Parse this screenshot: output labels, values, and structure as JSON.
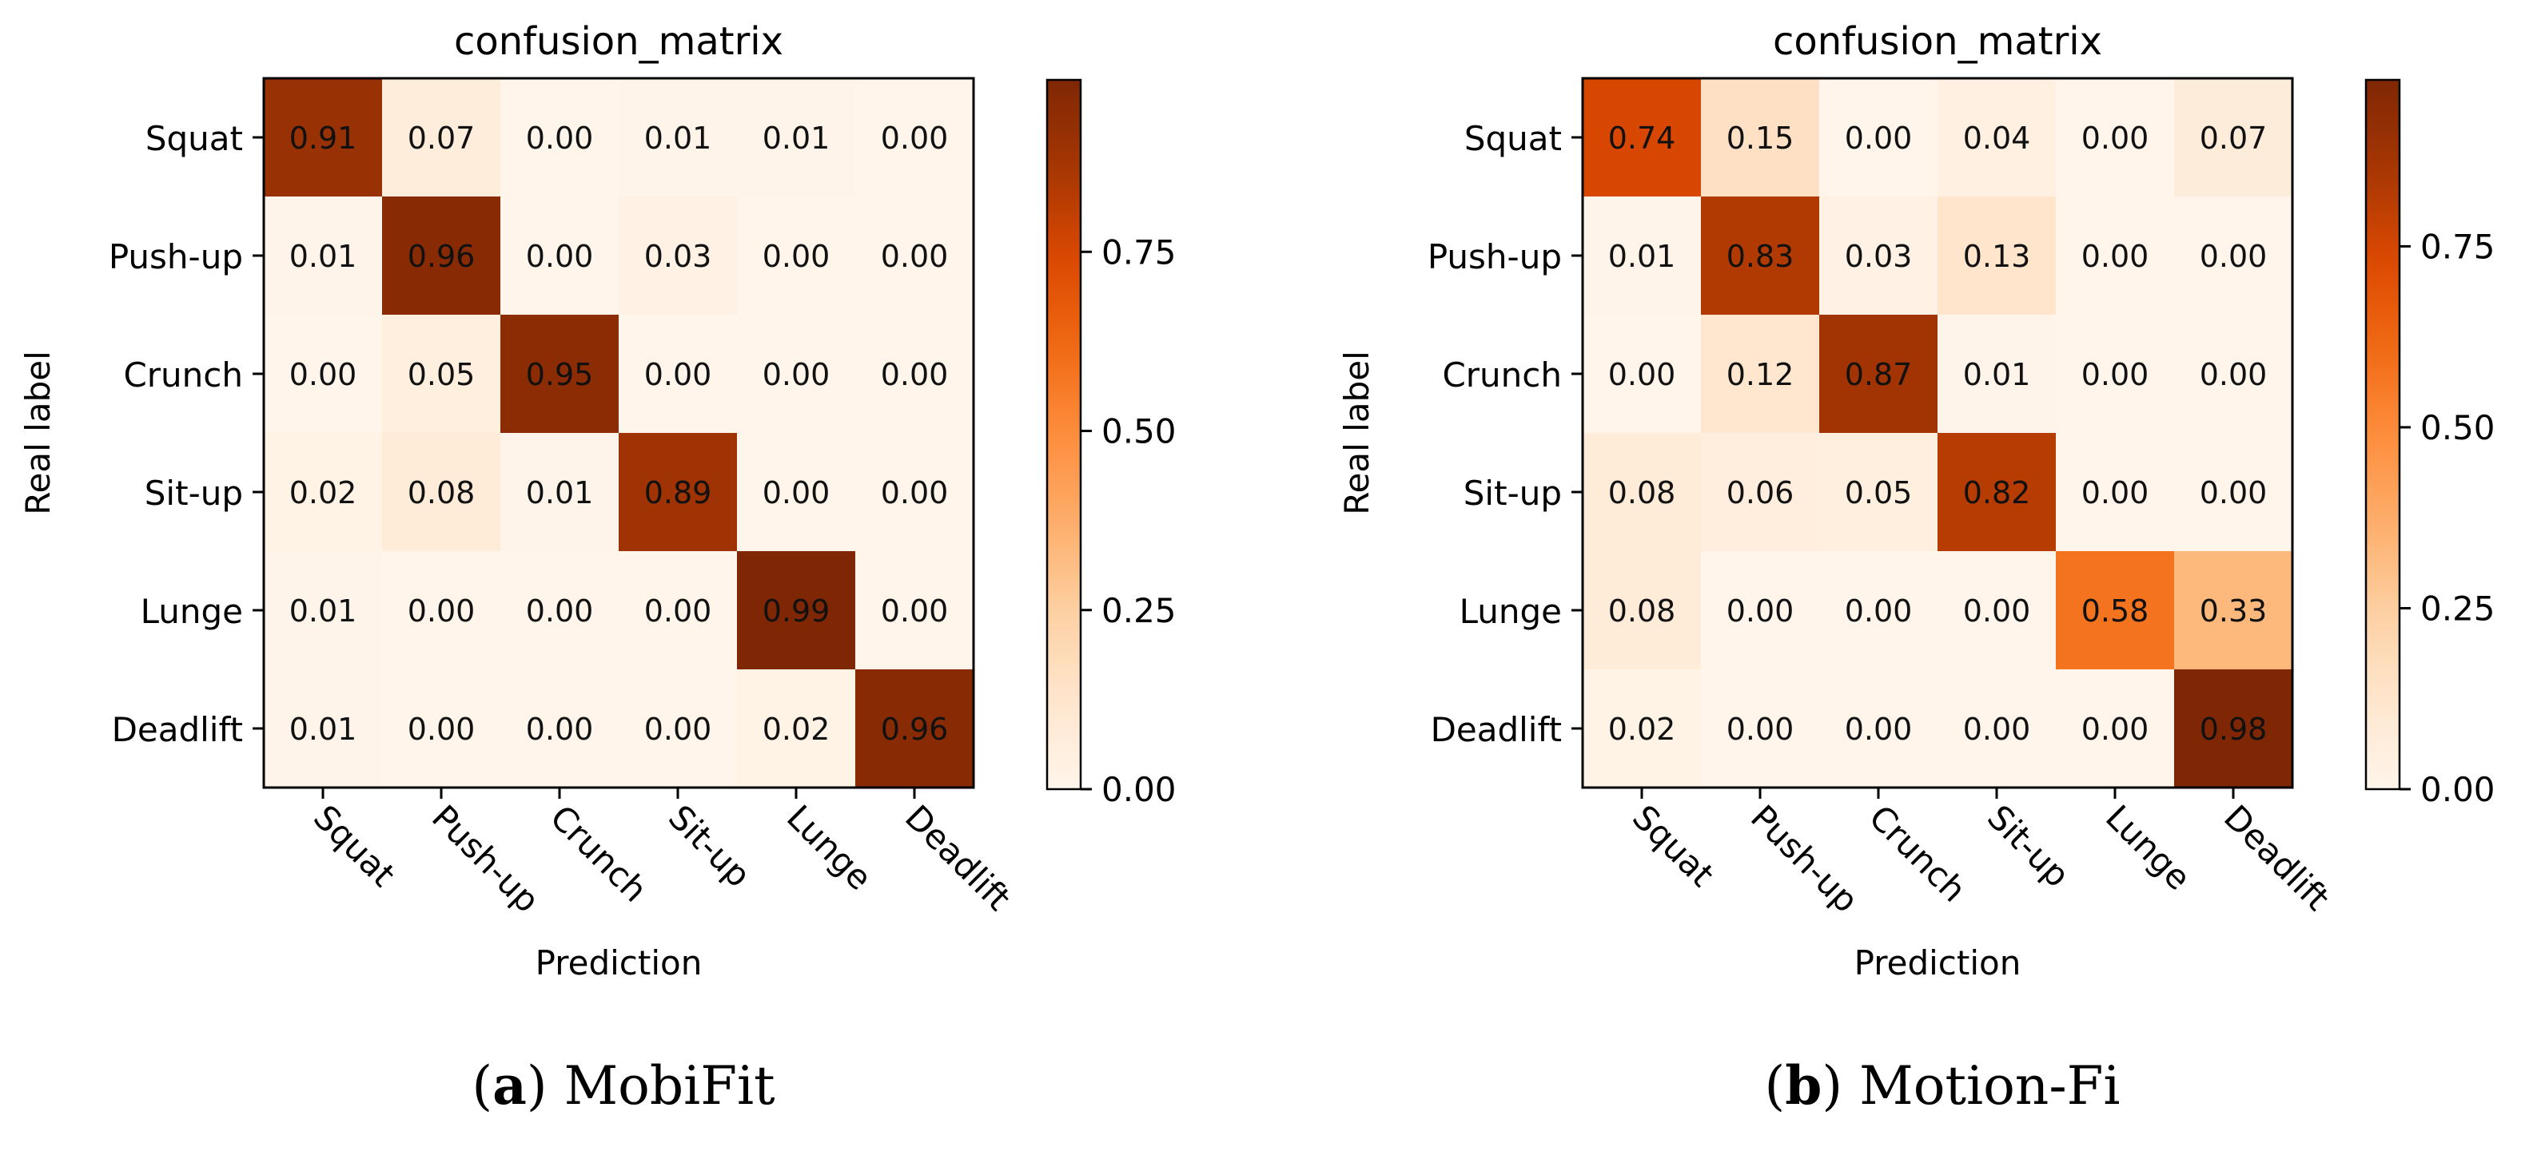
{
  "chart_data": [
    {
      "type": "heatmap",
      "title": "confusion_matrix",
      "xlabel": "Prediction",
      "ylabel": "Real label",
      "row_labels": [
        "Squat",
        "Push-up",
        "Crunch",
        "Sit-up",
        "Lunge",
        "Deadlift"
      ],
      "col_labels": [
        "Squat",
        "Push-up",
        "Crunch",
        "Sit-up",
        "Lunge",
        "Deadlift"
      ],
      "values": [
        [
          0.91,
          0.07,
          0.0,
          0.01,
          0.01,
          0.0
        ],
        [
          0.01,
          0.96,
          0.0,
          0.03,
          0.0,
          0.0
        ],
        [
          0.0,
          0.05,
          0.95,
          0.0,
          0.0,
          0.0
        ],
        [
          0.02,
          0.08,
          0.01,
          0.89,
          0.0,
          0.0
        ],
        [
          0.01,
          0.0,
          0.0,
          0.0,
          0.99,
          0.0
        ],
        [
          0.01,
          0.0,
          0.0,
          0.0,
          0.02,
          0.96
        ]
      ],
      "value_labels": [
        [
          "0.91",
          "0.07",
          "0.00",
          "0.01",
          "0.01",
          "0.00"
        ],
        [
          "0.01",
          "0.96",
          "0.00",
          "0.03",
          "0.00",
          "0.00"
        ],
        [
          "0.00",
          "0.05",
          "0.95",
          "0.00",
          "0.00",
          "0.00"
        ],
        [
          "0.02",
          "0.08",
          "0.01",
          "0.89",
          "0.00",
          "0.00"
        ],
        [
          "0.01",
          "0.00",
          "0.00",
          "0.00",
          "0.99",
          "0.00"
        ],
        [
          "0.01",
          "0.00",
          "0.00",
          "0.00",
          "0.02",
          "0.96"
        ]
      ],
      "colormap": "Oranges",
      "color_range": [
        0,
        0.99
      ],
      "colorbar_ticks": [
        0.0,
        0.25,
        0.5,
        0.75
      ],
      "colorbar_tick_labels": [
        "0.00",
        "0.25",
        "0.50",
        "0.75"
      ],
      "caption_letter": "a",
      "caption_name": "MobiFit"
    },
    {
      "type": "heatmap",
      "title": "confusion_matrix",
      "xlabel": "Prediction",
      "ylabel": "Real label",
      "row_labels": [
        "Squat",
        "Push-up",
        "Crunch",
        "Sit-up",
        "Lunge",
        "Deadlift"
      ],
      "col_labels": [
        "Squat",
        "Push-up",
        "Crunch",
        "Sit-up",
        "Lunge",
        "Deadlift"
      ],
      "values": [
        [
          0.74,
          0.15,
          0.0,
          0.04,
          0.0,
          0.07
        ],
        [
          0.01,
          0.83,
          0.03,
          0.13,
          0.0,
          0.0
        ],
        [
          0.0,
          0.12,
          0.87,
          0.01,
          0.0,
          0.0
        ],
        [
          0.08,
          0.06,
          0.05,
          0.82,
          0.0,
          0.0
        ],
        [
          0.08,
          0.0,
          0.0,
          0.0,
          0.58,
          0.33
        ],
        [
          0.02,
          0.0,
          0.0,
          0.0,
          0.0,
          0.98
        ]
      ],
      "value_labels": [
        [
          "0.74",
          "0.15",
          "0.00",
          "0.04",
          "0.00",
          "0.07"
        ],
        [
          "0.01",
          "0.83",
          "0.03",
          "0.13",
          "0.00",
          "0.00"
        ],
        [
          "0.00",
          "0.12",
          "0.87",
          "0.01",
          "0.00",
          "0.00"
        ],
        [
          "0.08",
          "0.06",
          "0.05",
          "0.82",
          "0.00",
          "0.00"
        ],
        [
          "0.08",
          "0.00",
          "0.00",
          "0.00",
          "0.58",
          "0.33"
        ],
        [
          "0.02",
          "0.00",
          "0.00",
          "0.00",
          "0.00",
          "0.98"
        ]
      ],
      "colormap": "Oranges",
      "color_range": [
        0,
        0.98
      ],
      "colorbar_ticks": [
        0.0,
        0.25,
        0.5,
        0.75
      ],
      "colorbar_tick_labels": [
        "0.00",
        "0.25",
        "0.50",
        "0.75"
      ],
      "caption_letter": "b",
      "caption_name": "Motion-Fi"
    }
  ]
}
